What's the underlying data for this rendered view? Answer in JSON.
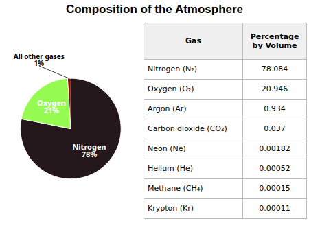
{
  "chart_data": {
    "type": "pie",
    "title": "Composition of the Atmosphere",
    "values": [
      78.084,
      20.946,
      1.0
    ],
    "data_labels": true,
    "value_labels": [
      "Nitrogen\n78%",
      "Oxygen\n21%",
      "All other gases\n1%"
    ],
    "table": {
      "columns": [
        "Gas",
        "Percentage\nby Volume"
      ],
      "rows": [
        [
          "Nitrogen (N₂)",
          "78.084"
        ],
        [
          "Oxygen (O₂)",
          "20.946"
        ],
        [
          "Argon (Ar)",
          "0.934"
        ],
        [
          "Carbon dioxide (CO₂)",
          "0.037"
        ],
        [
          "Neon (Ne)",
          "0.00182"
        ],
        [
          "Helium (He)",
          "0.00052"
        ],
        [
          "Methane (CH₄)",
          "0.00015"
        ],
        [
          "Krypton (Kr)",
          "0.00011"
        ]
      ]
    }
  }
}
